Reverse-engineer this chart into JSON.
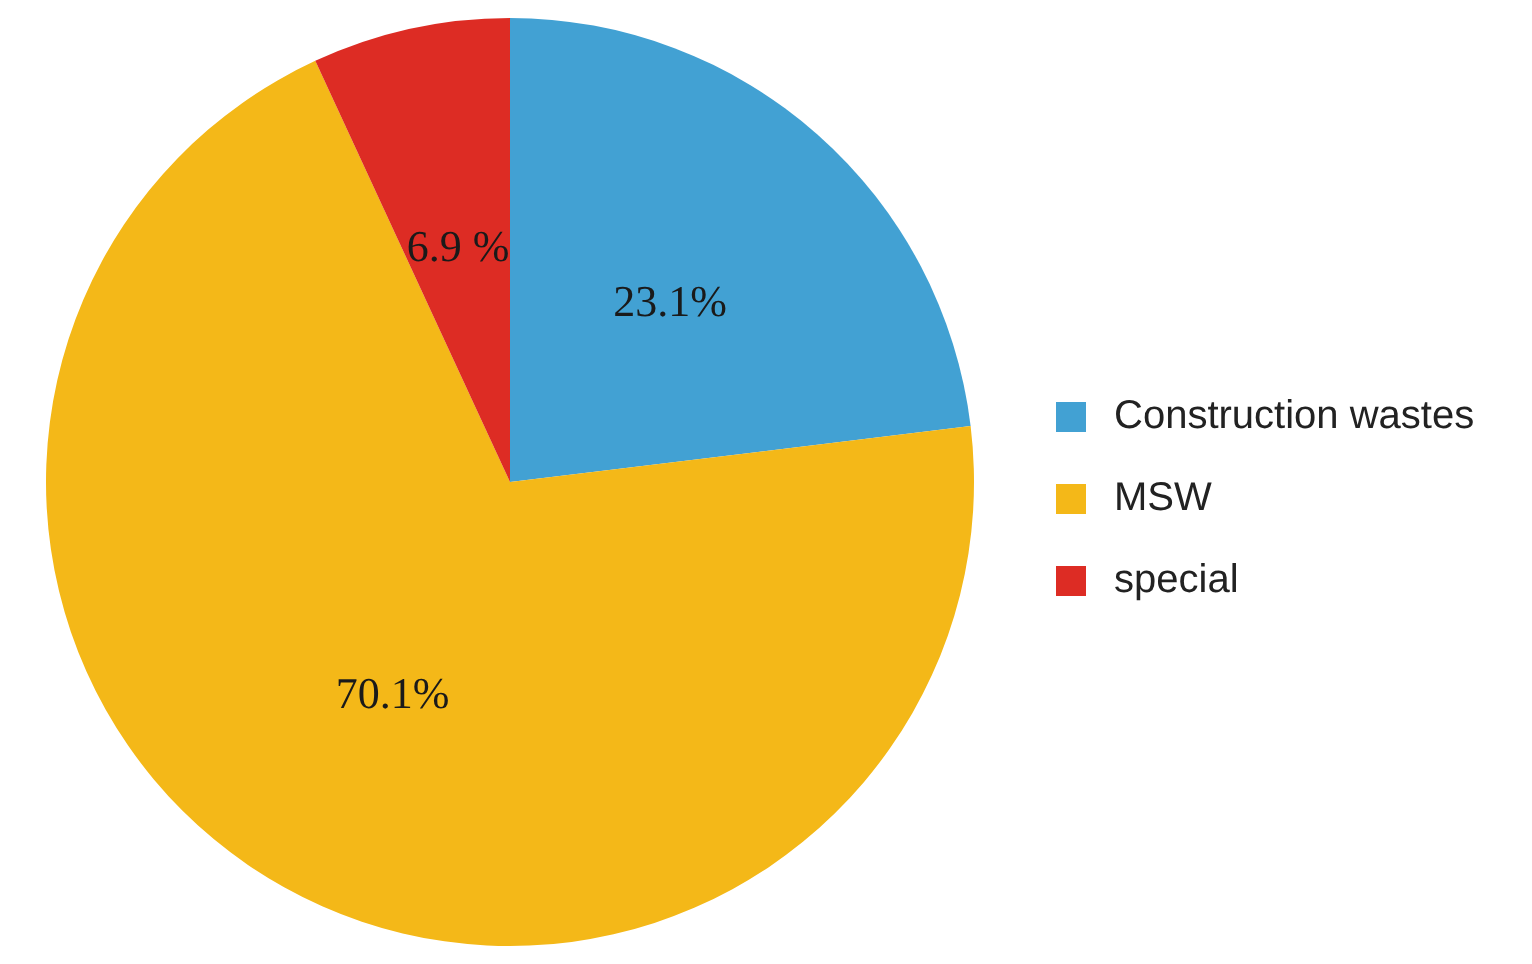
{
  "chart_data": {
    "type": "pie",
    "categories": [
      "Construction wastes",
      "MSW",
      "special"
    ],
    "values": [
      23.1,
      70.1,
      6.9
    ],
    "colors": [
      "#42a1d3",
      "#f4b818",
      "#dd2c24"
    ],
    "value_labels": [
      "23.1%",
      "70.1%",
      "6.9 %"
    ],
    "legend": "right"
  }
}
